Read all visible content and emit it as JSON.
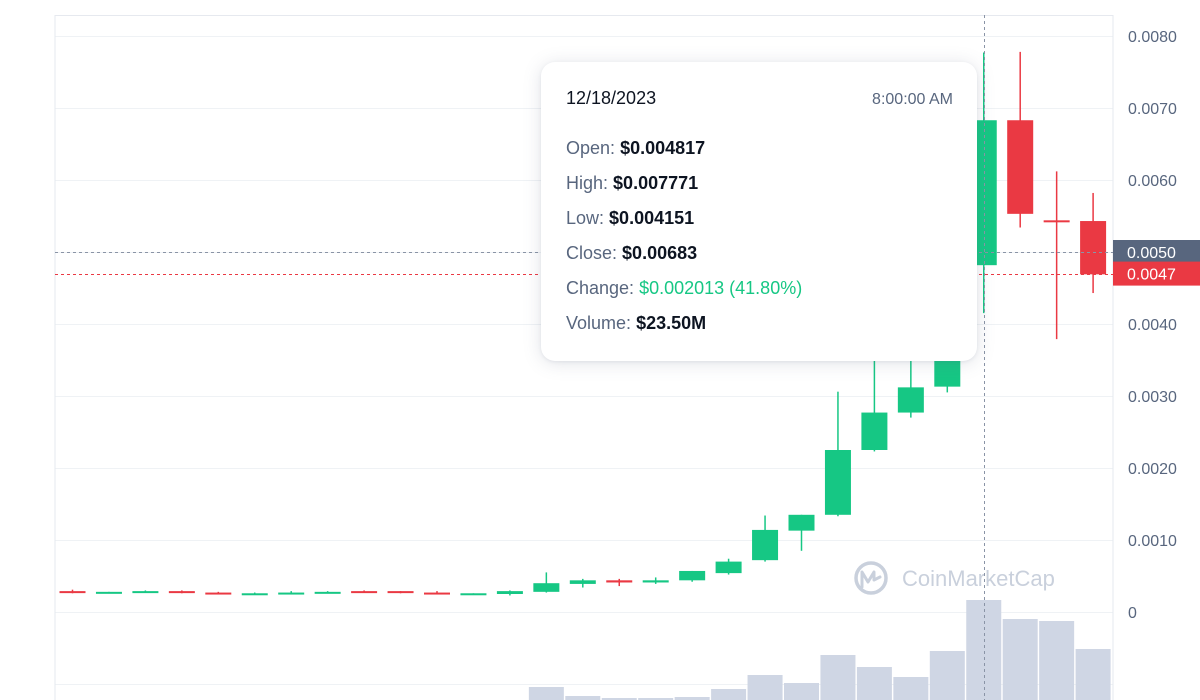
{
  "chart_data": {
    "type": "candlestick",
    "ylim": [
      0,
      0.008
    ],
    "y_ticks": [
      "0",
      "0.0010",
      "0.0020",
      "0.0030",
      "0.0040",
      "0.0050",
      "0.0060",
      "0.0070",
      "0.0080"
    ],
    "y_tick_values": [
      0,
      0.001,
      0.002,
      0.003,
      0.004,
      0.005,
      0.006,
      0.007,
      0.008
    ],
    "grid": true,
    "colors": {
      "up": "#16c784",
      "down": "#ea3943",
      "volume": "#cfd6e4",
      "grid": "#eff2f5",
      "axis_text": "#58667e",
      "current_tag": "#ea3943",
      "crosshair_tag": "#58667e"
    },
    "candles": [
      {
        "open": 0.00029,
        "high": 0.00031,
        "low": 0.00026,
        "close": 0.00028
      },
      {
        "open": 0.00027,
        "high": 0.00028,
        "low": 0.00026,
        "close": 0.00028
      },
      {
        "open": 0.00028,
        "high": 0.0003,
        "low": 0.00027,
        "close": 0.00029
      },
      {
        "open": 0.00029,
        "high": 0.0003,
        "low": 0.00026,
        "close": 0.00027
      },
      {
        "open": 0.00027,
        "high": 0.00028,
        "low": 0.00025,
        "close": 0.00026
      },
      {
        "open": 0.00025,
        "high": 0.00027,
        "low": 0.00024,
        "close": 0.00026
      },
      {
        "open": 0.00026,
        "high": 0.00029,
        "low": 0.00025,
        "close": 0.00027
      },
      {
        "open": 0.00027,
        "high": 0.00029,
        "low": 0.00026,
        "close": 0.00028
      },
      {
        "open": 0.00029,
        "high": 0.0003,
        "low": 0.00027,
        "close": 0.00028
      },
      {
        "open": 0.00029,
        "high": 0.00029,
        "low": 0.00026,
        "close": 0.00027
      },
      {
        "open": 0.00027,
        "high": 0.00029,
        "low": 0.00025,
        "close": 0.00026
      },
      {
        "open": 0.00025,
        "high": 0.00026,
        "low": 0.00024,
        "close": 0.00026
      },
      {
        "open": 0.00025,
        "high": 0.0003,
        "low": 0.00023,
        "close": 0.00029
      },
      {
        "open": 0.00028,
        "high": 0.00055,
        "low": 0.00027,
        "close": 0.0004
      },
      {
        "open": 0.00039,
        "high": 0.00046,
        "low": 0.00034,
        "close": 0.00044
      },
      {
        "open": 0.00044,
        "high": 0.00046,
        "low": 0.00036,
        "close": 0.00041
      },
      {
        "open": 0.00041,
        "high": 0.00048,
        "low": 0.00039,
        "close": 0.00044
      },
      {
        "open": 0.00044,
        "high": 0.00057,
        "low": 0.00042,
        "close": 0.00057
      },
      {
        "open": 0.00054,
        "high": 0.00074,
        "low": 0.00052,
        "close": 0.0007
      },
      {
        "open": 0.00072,
        "high": 0.00134,
        "low": 0.0007,
        "close": 0.00114
      },
      {
        "open": 0.00113,
        "high": 0.00135,
        "low": 0.00085,
        "close": 0.00135
      },
      {
        "open": 0.00135,
        "high": 0.00306,
        "low": 0.00133,
        "close": 0.00225
      },
      {
        "open": 0.00225,
        "high": 0.0035,
        "low": 0.00223,
        "close": 0.00277
      },
      {
        "open": 0.00277,
        "high": 0.0035,
        "low": 0.0027,
        "close": 0.00312
      },
      {
        "open": 0.00313,
        "high": 0.0036,
        "low": 0.00305,
        "close": 0.00352
      },
      {
        "open": 0.004817,
        "high": 0.007771,
        "low": 0.004151,
        "close": 0.00683
      },
      {
        "open": 0.00683,
        "high": 0.00778,
        "low": 0.00534,
        "close": 0.00553
      },
      {
        "open": 0.00544,
        "high": 0.00612,
        "low": 0.00379,
        "close": 0.00543
      },
      {
        "open": 0.00543,
        "high": 0.00582,
        "low": 0.00443,
        "close": 0.00469
      }
    ],
    "volume_relative": [
      0,
      0,
      0,
      0,
      0,
      0,
      0,
      0,
      0,
      0,
      0,
      0,
      0,
      0.13,
      0.04,
      0.02,
      0.02,
      0.03,
      0.11,
      0.25,
      0.17,
      0.45,
      0.33,
      0.23,
      0.49,
      1.0,
      0.81,
      0.79,
      0.51
    ],
    "price_tags": {
      "crosshair": {
        "label": "0.0050",
        "value": 0.005
      },
      "current": {
        "label": "0.0047",
        "value": 0.0047
      }
    },
    "hover_index": 25,
    "watermark": "CoinMarketCap"
  },
  "tooltip": {
    "date": "12/18/2023",
    "time": "8:00:00 AM",
    "rows": [
      {
        "label": "Open:",
        "value": "$0.004817"
      },
      {
        "label": "High:",
        "value": "$0.007771"
      },
      {
        "label": "Low:",
        "value": "$0.004151"
      },
      {
        "label": "Close:",
        "value": "$0.00683"
      },
      {
        "label": "Change:",
        "value": "$0.002013 (41.80%)"
      },
      {
        "label": "Volume:",
        "value": "$23.50M"
      }
    ]
  }
}
